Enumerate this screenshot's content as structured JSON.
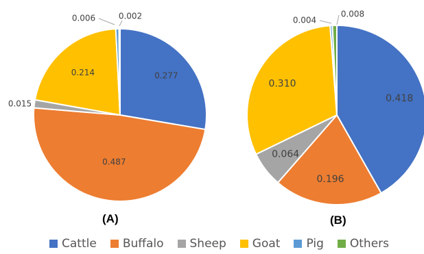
{
  "chart_data": [
    {
      "type": "pie",
      "panel_label": "(A)",
      "categories": [
        "Cattle",
        "Buffalo",
        "Sheep",
        "Goat",
        "Pig",
        "Others"
      ],
      "values": [
        0.277,
        0.487,
        0.015,
        0.214,
        0.006,
        0.002
      ],
      "labels": [
        "0.277",
        "0.487",
        "0.015",
        "0.214",
        "0.006",
        "0.002"
      ]
    },
    {
      "type": "pie",
      "panel_label": "(B)",
      "categories": [
        "Cattle",
        "Buffalo",
        "Sheep",
        "Goat",
        "Pig",
        "Others"
      ],
      "values": [
        0.418,
        0.196,
        0.064,
        0.31,
        0.004,
        0.008
      ],
      "labels": [
        "0.418",
        "0.196",
        "0.064",
        "0.310",
        "0.004",
        "0.008"
      ]
    }
  ],
  "legend": {
    "placement": "bottom",
    "items": [
      {
        "label": "Cattle",
        "color": "#4472C4"
      },
      {
        "label": "Buffalo",
        "color": "#ED7D31"
      },
      {
        "label": "Sheep",
        "color": "#A5A5A5"
      },
      {
        "label": "Goat",
        "color": "#FFC000"
      },
      {
        "label": "Pig",
        "color": "#5B9BD5"
      },
      {
        "label": "Others",
        "color": "#70AD47"
      }
    ]
  }
}
